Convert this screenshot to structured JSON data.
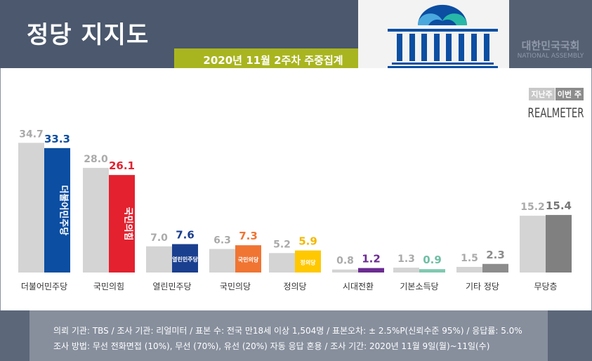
{
  "header": {
    "title": "정당 지지도",
    "subtitle": "2020년 11월 2주차 주중집계",
    "assembly_kr": "대한민국국회",
    "assembly_en": "NATIONAL ASSEMBLY"
  },
  "legend": {
    "previous": "지난주",
    "current": "이번 주",
    "brand": "REALMETER"
  },
  "footer": {
    "line1": "의뢰 기관:  TBS / 조사 기관:  리얼미터  / 표본 수:  전국 만18세 이상 1,504명 / 표본오차:   ± 2.5%P(신뢰수준  95%) / 응답률:  5.0%",
    "line2": "조사 방법:  무선 전화면접 (10%), 무선 (70%), 유선 (20%)  자동 응답 혼용  / 조사 기간:  2020년 11월 9일(월)~11일(수)"
  },
  "chart_data": {
    "type": "bar",
    "title": "정당 지지도",
    "ylim": [
      0,
      36
    ],
    "grid": false,
    "legend_position": "top-right",
    "categories": [
      "더불어민주당",
      "국민의힘",
      "열린민주당",
      "국민의당",
      "정의당",
      "시대전환",
      "기본소득당",
      "기타 정당",
      "무당층"
    ],
    "series": [
      {
        "name": "지난주",
        "values": [
          34.7,
          28.0,
          7.0,
          6.3,
          5.2,
          0.8,
          1.3,
          1.5,
          15.2
        ],
        "color": "#d4d4d4"
      },
      {
        "name": "이번 주",
        "values": [
          33.3,
          26.1,
          7.6,
          7.3,
          5.9,
          1.2,
          0.9,
          2.3,
          15.4
        ],
        "colors": [
          "#0b4ea2",
          "#e3212f",
          "#1b3f8f",
          "#f07533",
          "#ffc800",
          "#6b2c91",
          "#7fc9b0",
          "#8c8c8c",
          "#808080"
        ]
      }
    ],
    "value_label_colors": [
      "#0b4ea2",
      "#e3212f",
      "#1b3f8f",
      "#f07533",
      "#f2b800",
      "#6b2c91",
      "#6fbfa5",
      "#8c8c8c",
      "#777777"
    ],
    "bar_text": [
      "더불어민주당",
      "국민의힘",
      "열린민주당",
      "국민의당",
      "정의당"
    ]
  }
}
